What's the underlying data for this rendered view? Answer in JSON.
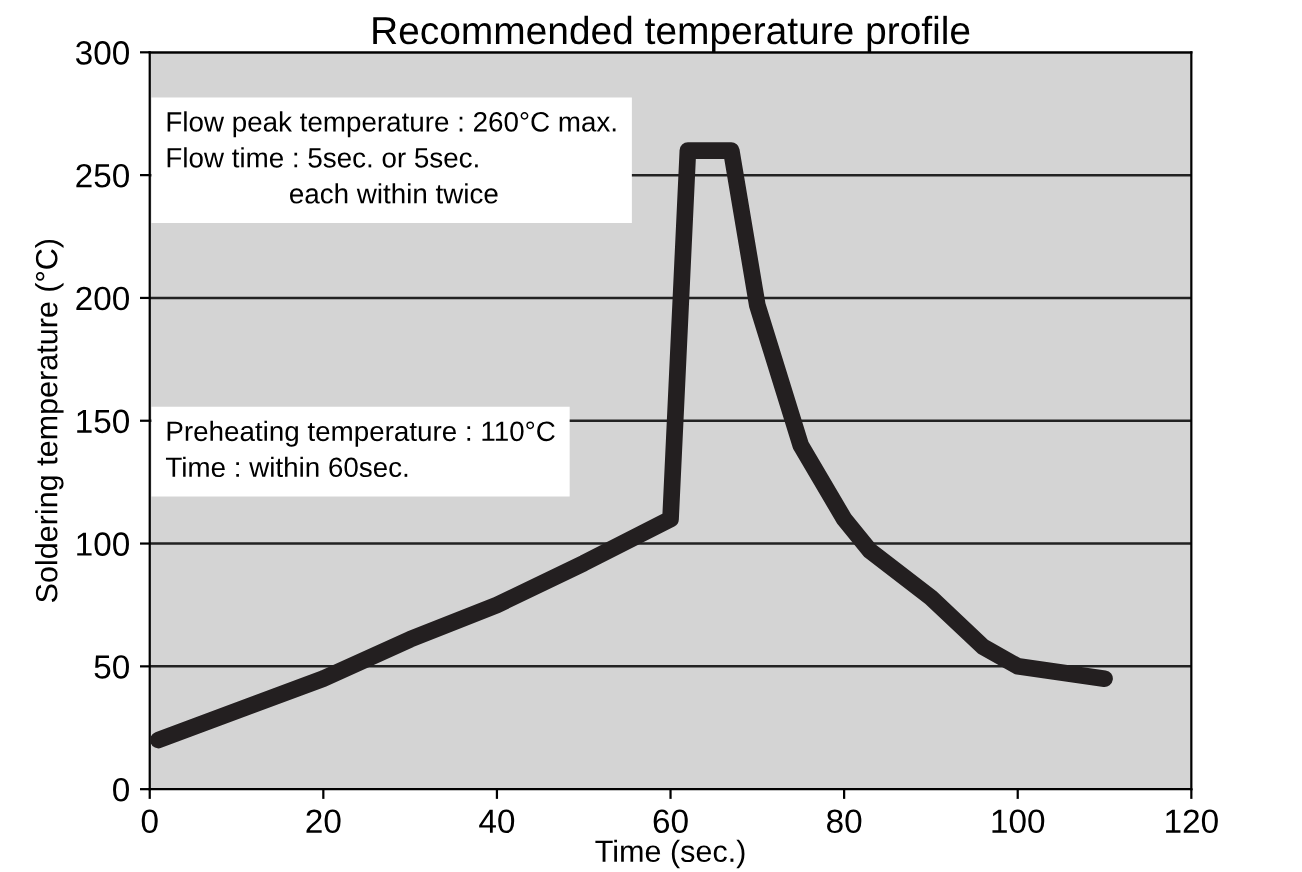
{
  "chart_data": {
    "type": "line",
    "title": "Recommended temperature profile",
    "xlabel": "Time (sec.)",
    "ylabel": "Soldering temperature (°C)",
    "x": [
      1,
      20,
      30,
      40,
      50,
      60,
      62,
      67,
      70,
      75,
      80,
      83,
      90,
      96,
      100,
      110
    ],
    "series": [
      {
        "color": "#231f20",
        "values": [
          20,
          45,
          61,
          75,
          92,
          110,
          260,
          260,
          197,
          140,
          110,
          97,
          78,
          58,
          50,
          45
        ]
      }
    ],
    "xlim": [
      0,
      120
    ],
    "xticks": [
      0,
      20,
      40,
      60,
      80,
      100,
      120
    ],
    "ylim": [
      0,
      300
    ],
    "yticks": [
      0,
      50,
      100,
      150,
      200,
      250,
      300
    ],
    "grid": "y",
    "marker": "none",
    "line_style": "solid",
    "annotations": [
      "Flow peak temperature : 260°C max.\nFlow time : 5sec. or 5sec.\n                each within twice",
      "Preheating temperature : 110°C\nTime : within 60sec."
    ]
  }
}
